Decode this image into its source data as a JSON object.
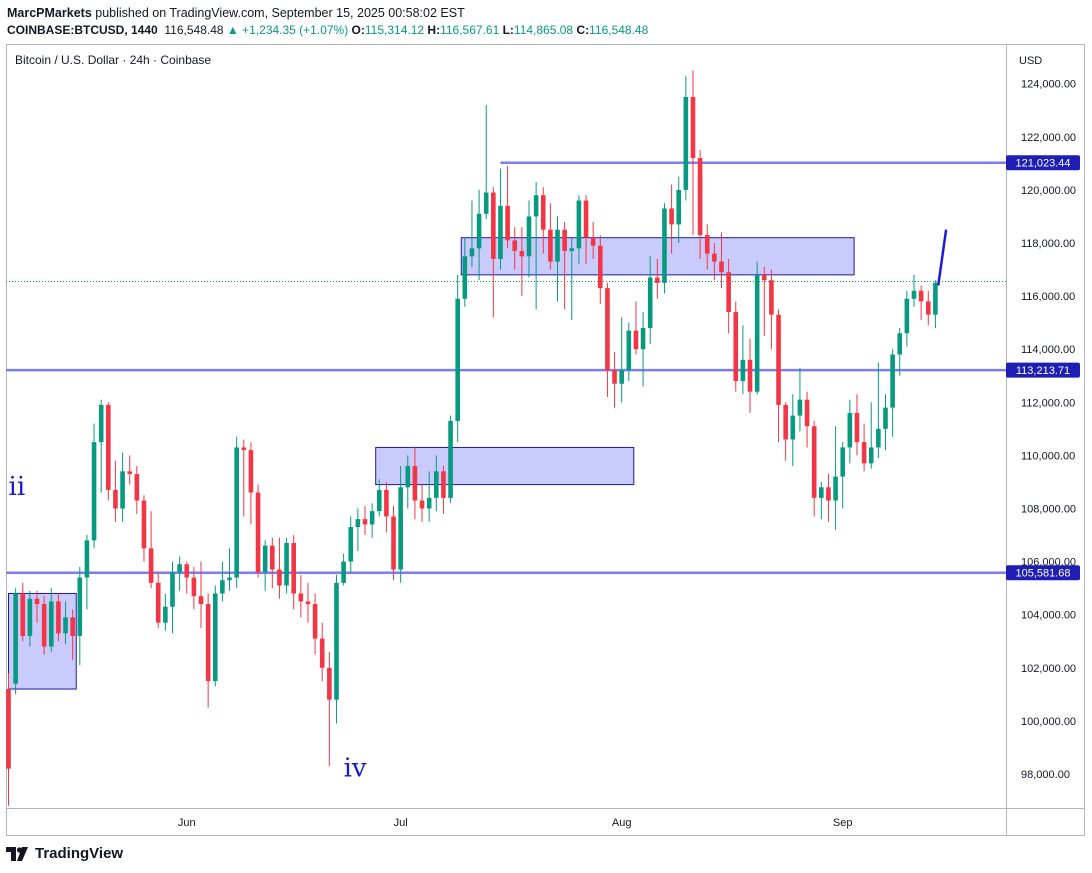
{
  "header": {
    "publisher": "MarcPMarkets",
    "published_text": "published on TradingView.com, September 15, 2025 00:58:02 EST",
    "symbol": "COINBASE:BTCUSD, 1440",
    "last_price": "116,548.48",
    "change": "+1,234.35 (+1.07%)",
    "o_label": "O:",
    "o_value": "115,314.12",
    "h_label": "H:",
    "h_value": "116,567.61",
    "l_label": "L:",
    "l_value": "114,865.08",
    "c_label": "C:",
    "c_value": "116,548.48"
  },
  "footer": {
    "brand": "TradingView"
  },
  "colors": {
    "up": "#089981",
    "down": "#f23645",
    "level_line": "#7b7ef0",
    "zone_fill": "#c7c8fd",
    "zone_border": "#1a1aa8",
    "price_tag": "#1e1eb4",
    "wave_label": "#1a1ad0",
    "impulse": "#1c1cd8"
  },
  "chart_data": {
    "type": "candlestick",
    "title": "Bitcoin / U.S. Dollar · 24h · Coinbase",
    "axis_currency": "USD",
    "ylim": [
      96500,
      125600
    ],
    "y_ticks": [
      98000,
      100000,
      102000,
      104000,
      106000,
      108000,
      110000,
      112000,
      114000,
      116000,
      118000,
      120000,
      122000,
      124000
    ],
    "y_tick_labels": [
      "98,000.00",
      "100,000.00",
      "102,000.00",
      "104,000.00",
      "106,000.00",
      "108,000.00",
      "110,000.00",
      "112,000.00",
      "114,000.00",
      "116,000.00",
      "118,000.00",
      "120,000.00",
      "122,000.00",
      "124,000.00"
    ],
    "x_ticks": [
      {
        "label": "Jun",
        "index": 25
      },
      {
        "label": "Jul",
        "index": 55
      },
      {
        "label": "Aug",
        "index": 86
      },
      {
        "label": "Sep",
        "index": 117
      }
    ],
    "candles": [
      [
        101200,
        98200,
        101800,
        96800
      ],
      [
        101400,
        104800,
        105000,
        101000
      ],
      [
        104800,
        103200,
        105200,
        103000
      ],
      [
        103200,
        104600,
        104900,
        102800
      ],
      [
        104600,
        104400,
        104900,
        103700
      ],
      [
        104400,
        102800,
        104700,
        102500
      ],
      [
        102800,
        104500,
        105000,
        102600
      ],
      [
        104500,
        103300,
        104800,
        103000
      ],
      [
        103300,
        103900,
        104500,
        102900
      ],
      [
        103900,
        103200,
        104200,
        102300
      ],
      [
        103200,
        105400,
        105800,
        102100
      ],
      [
        105400,
        106800,
        107000,
        104200
      ],
      [
        106800,
        110500,
        111200,
        106500
      ],
      [
        110500,
        111900,
        112100,
        108600
      ],
      [
        111900,
        108700,
        112000,
        108300
      ],
      [
        108700,
        108000,
        109800,
        107500
      ],
      [
        108000,
        109400,
        110100,
        107500
      ],
      [
        109400,
        109300,
        110000,
        108900
      ],
      [
        109300,
        108300,
        109600,
        107800
      ],
      [
        108300,
        106500,
        108500,
        106000
      ],
      [
        106500,
        105200,
        107900,
        105000
      ],
      [
        105200,
        103700,
        105600,
        103500
      ],
      [
        103700,
        104300,
        104800,
        103400
      ],
      [
        104300,
        105600,
        106000,
        103300
      ],
      [
        105600,
        105900,
        106200,
        104900
      ],
      [
        105900,
        105400,
        106000,
        104800
      ],
      [
        105400,
        104700,
        105800,
        104200
      ],
      [
        104700,
        104400,
        106000,
        103500
      ],
      [
        104400,
        101500,
        104800,
        100500
      ],
      [
        101500,
        104800,
        105100,
        101300
      ],
      [
        104800,
        105300,
        106000,
        104500
      ],
      [
        105300,
        105400,
        106500,
        104900
      ],
      [
        105400,
        110300,
        110700,
        105000
      ],
      [
        110300,
        110200,
        110600,
        107700
      ],
      [
        110200,
        108600,
        110500,
        107400
      ],
      [
        108600,
        105600,
        108900,
        105400
      ],
      [
        105600,
        106600,
        106800,
        104900
      ],
      [
        106600,
        105700,
        106900,
        105000
      ],
      [
        105700,
        105100,
        106900,
        104600
      ],
      [
        105100,
        106700,
        106900,
        104800
      ],
      [
        106700,
        104800,
        107000,
        104200
      ],
      [
        104800,
        104500,
        105500,
        103900
      ],
      [
        104500,
        104400,
        105200,
        103700
      ],
      [
        104400,
        103100,
        104800,
        102500
      ],
      [
        103100,
        102000,
        103700,
        101500
      ],
      [
        102000,
        100800,
        102600,
        98300
      ],
      [
        100800,
        105200,
        105500,
        99900
      ],
      [
        105200,
        106000,
        106300,
        105100
      ],
      [
        106000,
        107300,
        107700,
        105600
      ],
      [
        107300,
        107600,
        108000,
        106400
      ],
      [
        107600,
        107400,
        108100,
        107000
      ],
      [
        107400,
        107900,
        108200,
        106900
      ],
      [
        107900,
        108700,
        109100,
        107700
      ],
      [
        108700,
        107700,
        109000,
        107100
      ],
      [
        107700,
        105700,
        108100,
        105300
      ],
      [
        105700,
        108800,
        109600,
        105200
      ],
      [
        108800,
        109600,
        110000,
        108000
      ],
      [
        109600,
        108300,
        110300,
        107600
      ],
      [
        108300,
        108000,
        108900,
        107500
      ],
      [
        108000,
        108400,
        109400,
        107500
      ],
      [
        108400,
        109400,
        110000,
        107900
      ],
      [
        109400,
        108400,
        109600,
        107800
      ],
      [
        108400,
        111300,
        111500,
        108200
      ],
      [
        111300,
        115900,
        116800,
        110500
      ],
      [
        115900,
        117500,
        118200,
        115600
      ],
      [
        117500,
        117800,
        119600,
        117100
      ],
      [
        117800,
        119100,
        120000,
        116600
      ],
      [
        119100,
        119900,
        123200,
        118900
      ],
      [
        119900,
        117400,
        120100,
        115200
      ],
      [
        117400,
        119400,
        120800,
        117000
      ],
      [
        119400,
        118100,
        120900,
        117800
      ],
      [
        118100,
        117700,
        118600,
        117000
      ],
      [
        117700,
        117500,
        118600,
        116000
      ],
      [
        117500,
        119000,
        119600,
        116700
      ],
      [
        119000,
        119800,
        120300,
        115500
      ],
      [
        119800,
        118500,
        120100,
        117600
      ],
      [
        118500,
        117300,
        119500,
        117000
      ],
      [
        117300,
        118500,
        119000,
        115800
      ],
      [
        118500,
        117700,
        118800,
        115500
      ],
      [
        117700,
        117800,
        118200,
        115100
      ],
      [
        117800,
        119600,
        119800,
        117200
      ],
      [
        119600,
        118200,
        119800,
        117200
      ],
      [
        118200,
        117900,
        118800,
        117400
      ],
      [
        117900,
        116300,
        118300,
        115700
      ],
      [
        116300,
        113200,
        116500,
        112200
      ],
      [
        113200,
        112700,
        113900,
        111800
      ],
      [
        112700,
        113200,
        115200,
        112000
      ],
      [
        113200,
        114700,
        115000,
        112800
      ],
      [
        114700,
        114000,
        115800,
        113800
      ],
      [
        114000,
        114800,
        115400,
        112600
      ],
      [
        114800,
        116700,
        117500,
        114200
      ],
      [
        116700,
        116500,
        117400,
        115900
      ],
      [
        116500,
        119300,
        119500,
        116100
      ],
      [
        119300,
        118700,
        120200,
        117600
      ],
      [
        118700,
        120000,
        120500,
        118000
      ],
      [
        120000,
        123500,
        124300,
        119600
      ],
      [
        123500,
        121200,
        124500,
        118300
      ],
      [
        121200,
        118300,
        121500,
        117400
      ],
      [
        118300,
        117600,
        118700,
        117000
      ],
      [
        117600,
        117300,
        118000,
        116600
      ],
      [
        117300,
        116900,
        118400,
        116300
      ],
      [
        116900,
        115400,
        117400,
        114600
      ],
      [
        115400,
        112800,
        115800,
        112400
      ],
      [
        112800,
        113600,
        114900,
        112300
      ],
      [
        113600,
        112400,
        114400,
        111600
      ],
      [
        112400,
        116800,
        117300,
        112300
      ],
      [
        116800,
        116600,
        117100,
        114500
      ],
      [
        116600,
        115300,
        117000,
        114000
      ],
      [
        115300,
        111900,
        115500,
        110500
      ],
      [
        111900,
        110600,
        112000,
        109800
      ],
      [
        110600,
        111500,
        112300,
        109600
      ],
      [
        111500,
        112100,
        113300,
        110900
      ],
      [
        112100,
        111100,
        112400,
        110300
      ],
      [
        111100,
        108400,
        111300,
        107700
      ],
      [
        108400,
        108800,
        109000,
        107600
      ],
      [
        108800,
        108300,
        109300,
        107500
      ],
      [
        108300,
        109200,
        111100,
        107200
      ],
      [
        109200,
        110300,
        110500,
        108000
      ],
      [
        110300,
        111600,
        112100,
        109700
      ],
      [
        111600,
        110500,
        112300,
        110000
      ],
      [
        110500,
        109700,
        111200,
        109400
      ],
      [
        109700,
        110300,
        112000,
        109500
      ],
      [
        110300,
        111000,
        113500,
        109900
      ],
      [
        111000,
        111800,
        112300,
        110200
      ],
      [
        111800,
        113800,
        114000,
        110700
      ],
      [
        113800,
        114600,
        114800,
        113000
      ],
      [
        114600,
        115900,
        116200,
        114100
      ],
      [
        115900,
        116200,
        116800,
        115600
      ],
      [
        116200,
        115800,
        116400,
        115100
      ],
      [
        115800,
        115300,
        116200,
        114900
      ],
      [
        115300,
        116500,
        116600,
        114800
      ]
    ],
    "levels": [
      {
        "price": 121023.44,
        "label": "121,023.44"
      },
      {
        "price": 113213.71,
        "label": "113,213.71"
      },
      {
        "price": 105581.68,
        "label": "105,581.68"
      }
    ],
    "current_price": 116548.48,
    "zones": [
      {
        "from": 0,
        "to": 9.5,
        "high": 104800,
        "low": 101200
      },
      {
        "from": 51.5,
        "to": 87.7,
        "high": 110300,
        "low": 108900
      },
      {
        "from": 63.5,
        "to": 118.6,
        "high": 118200,
        "low": 116800
      }
    ],
    "annotations": [
      {
        "text": "ii",
        "index": 0,
        "price": 108500
      },
      {
        "text": "iv",
        "index": 47,
        "price": 97900
      }
    ],
    "impulse_line": {
      "start_index": 130.4,
      "start_price": 116400,
      "end_index": 131.5,
      "end_price": 118500
    }
  }
}
